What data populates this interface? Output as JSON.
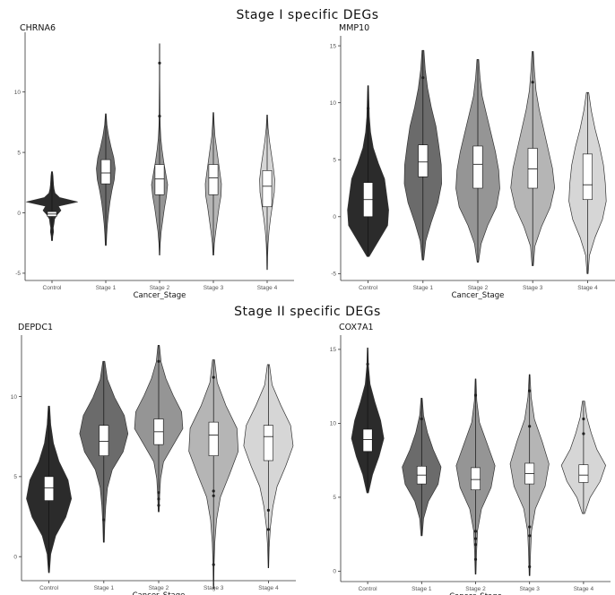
{
  "sections": [
    {
      "title": "Stage I specific DEGs"
    },
    {
      "title": "Stage II specific DEGs"
    }
  ],
  "chart_data": [
    {
      "type": "violin",
      "title": "CHRNA6",
      "xlabel": "Cancer_Stage",
      "ylabel": "",
      "categories": [
        "Control",
        "Stage 1",
        "Stage 2",
        "Stage 3",
        "Stage 4"
      ],
      "yticks": [
        -5,
        0,
        5,
        10
      ],
      "ylim": [
        -5.6,
        14.5
      ],
      "fill_colors": [
        "#2b2b2b",
        "#6b6b6b",
        "#959595",
        "#b5b5b5",
        "#d6d6d6"
      ],
      "grid": false,
      "series": [
        {
          "category": "Control",
          "min": -2.3,
          "max": 3.4,
          "q1": -0.3,
          "median": -0.1,
          "q3": 0.1,
          "half_width": 0.95,
          "shape": [
            0.02,
            0.03,
            0.06,
            0.05,
            0.08,
            0.1,
            0.2,
            0.35,
            0.25,
            1.0,
            0.3,
            0.12,
            0.08,
            0.06,
            0.05,
            0.04,
            0.02
          ]
        },
        {
          "category": "Stage 1",
          "min": -2.7,
          "max": 8.2,
          "q1": 2.4,
          "median": 3.3,
          "q3": 4.4,
          "half_width": 0.35,
          "shape": [
            0.05,
            0.1,
            0.18,
            0.3,
            0.45,
            0.65,
            0.9,
            1.0,
            0.85,
            0.55,
            0.3,
            0.12,
            0.04
          ]
        },
        {
          "category": "Stage 2",
          "min": -3.5,
          "max": 14.0,
          "q1": 1.5,
          "median": 2.8,
          "q3": 4.0,
          "half_width": 0.3,
          "shape": [
            0.03,
            0.08,
            0.2,
            0.4,
            0.6,
            0.85,
            1.0,
            0.75,
            0.5,
            0.3,
            0.15,
            0.08,
            0.05,
            0.04,
            0.03,
            0.02,
            0.02,
            0.015,
            0.01
          ],
          "outliers": [
            12.4,
            8.0
          ]
        },
        {
          "category": "Stage 3",
          "min": -3.5,
          "max": 8.3,
          "q1": 1.5,
          "median": 2.9,
          "q3": 4.0,
          "half_width": 0.3,
          "shape": [
            0.05,
            0.12,
            0.3,
            0.5,
            0.7,
            0.95,
            1.0,
            0.8,
            0.6,
            0.4,
            0.2,
            0.1,
            0.04
          ]
        },
        {
          "category": "Stage 4",
          "min": -4.7,
          "max": 8.1,
          "q1": 0.5,
          "median": 2.2,
          "q3": 3.5,
          "half_width": 0.28,
          "shape": [
            0.03,
            0.06,
            0.12,
            0.25,
            0.45,
            0.7,
            0.95,
            1.0,
            0.8,
            0.55,
            0.3,
            0.12,
            0.04
          ]
        }
      ]
    },
    {
      "type": "violin",
      "title": "MMP10",
      "xlabel": "Cancer_Stage",
      "ylabel": "",
      "categories": [
        "Control",
        "Stage 1",
        "Stage 2",
        "Stage 3",
        "Stage 4"
      ],
      "yticks": [
        -5,
        0,
        5,
        10,
        15
      ],
      "ylim": [
        -5.6,
        15.4
      ],
      "fill_colors": [
        "#2b2b2b",
        "#6b6b6b",
        "#959595",
        "#b5b5b5",
        "#d6d6d6"
      ],
      "grid": false,
      "series": [
        {
          "category": "Control",
          "min": -3.5,
          "max": 11.5,
          "q1": 0.0,
          "median": 1.5,
          "q3": 3.0,
          "half_width": 0.75,
          "shape": [
            0.05,
            0.5,
            0.95,
            1.0,
            0.9,
            0.8,
            0.5,
            0.25,
            0.12,
            0.06,
            0.04,
            0.02
          ],
          "outliers": [
            9.5
          ]
        },
        {
          "category": "Stage 1",
          "min": -3.8,
          "max": 14.6,
          "q1": 3.5,
          "median": 4.8,
          "q3": 6.3,
          "half_width": 0.68,
          "shape": [
            0.04,
            0.15,
            0.45,
            0.8,
            1.0,
            0.98,
            0.85,
            0.7,
            0.45,
            0.25,
            0.12,
            0.05
          ],
          "outliers": [
            12.2
          ]
        },
        {
          "category": "Stage 2",
          "min": -4.0,
          "max": 13.8,
          "q1": 2.5,
          "median": 4.6,
          "q3": 6.2,
          "half_width": 0.8,
          "shape": [
            0.03,
            0.15,
            0.45,
            0.85,
            1.0,
            0.95,
            0.8,
            0.6,
            0.4,
            0.2,
            0.1,
            0.04
          ]
        },
        {
          "category": "Stage 3",
          "min": -4.3,
          "max": 14.5,
          "q1": 2.5,
          "median": 4.2,
          "q3": 6.0,
          "half_width": 0.8,
          "shape": [
            0.03,
            0.1,
            0.4,
            0.8,
            1.0,
            0.9,
            0.7,
            0.5,
            0.3,
            0.15,
            0.08,
            0.03
          ],
          "outliers": [
            11.8
          ]
        },
        {
          "category": "Stage 4",
          "min": -5.0,
          "max": 10.9,
          "q1": 1.5,
          "median": 2.8,
          "q3": 5.5,
          "half_width": 0.68,
          "shape": [
            0.03,
            0.1,
            0.4,
            0.8,
            1.0,
            0.95,
            0.85,
            0.65,
            0.4,
            0.2,
            0.06
          ]
        }
      ]
    },
    {
      "type": "violin",
      "title": "DEPDC1",
      "xlabel": "Cancer_Stage",
      "ylabel": "",
      "categories": [
        "Control",
        "Stage 1",
        "Stage 2",
        "Stage 3",
        "Stage 4"
      ],
      "yticks": [
        0,
        5,
        10
      ],
      "ylim": [
        -1.5,
        13.5
      ],
      "fill_colors": [
        "#2b2b2b",
        "#6b6b6b",
        "#959595",
        "#b5b5b5",
        "#d6d6d6"
      ],
      "grid": false,
      "series": [
        {
          "category": "Control",
          "min": -1.0,
          "max": 9.4,
          "q1": 3.5,
          "median": 4.3,
          "q3": 5.0,
          "half_width": 0.82,
          "shape": [
            0.02,
            0.08,
            0.3,
            0.75,
            1.0,
            0.85,
            0.45,
            0.2,
            0.08,
            0.03
          ],
          "outliers": [
            0.5,
            8.5
          ]
        },
        {
          "category": "Stage 1",
          "min": 0.9,
          "max": 12.2,
          "q1": 6.3,
          "median": 7.2,
          "q3": 8.2,
          "half_width": 0.88,
          "shape": [
            0.02,
            0.04,
            0.08,
            0.15,
            0.35,
            0.8,
            1.0,
            0.85,
            0.45,
            0.15,
            0.04
          ],
          "outliers": [
            2.3
          ]
        },
        {
          "category": "Stage 2",
          "min": 2.8,
          "max": 13.2,
          "q1": 7.0,
          "median": 7.8,
          "q3": 8.6,
          "half_width": 0.88,
          "shape": [
            0.02,
            0.04,
            0.08,
            0.2,
            0.6,
            1.0,
            0.95,
            0.6,
            0.3,
            0.1,
            0.03
          ],
          "outliers": [
            12.2,
            3.2,
            3.6,
            4.0
          ]
        },
        {
          "category": "Stage 3",
          "min": -2.0,
          "max": 12.3,
          "q1": 6.3,
          "median": 7.6,
          "q3": 8.4,
          "half_width": 0.9,
          "shape": [
            0.01,
            0.02,
            0.05,
            0.12,
            0.28,
            0.65,
            1.0,
            0.95,
            0.5,
            0.15,
            0.04
          ],
          "outliers": [
            -0.5,
            3.8,
            4.1,
            11.2
          ]
        },
        {
          "category": "Stage 4",
          "min": -0.7,
          "max": 12.0,
          "q1": 6.0,
          "median": 7.5,
          "q3": 8.2,
          "half_width": 0.9,
          "shape": [
            0.01,
            0.03,
            0.08,
            0.18,
            0.35,
            0.7,
            1.0,
            0.9,
            0.5,
            0.15,
            0.04
          ],
          "outliers": [
            1.7,
            2.9
          ]
        }
      ]
    },
    {
      "type": "violin",
      "title": "COX7A1",
      "xlabel": "Cancer_Stage",
      "ylabel": "",
      "categories": [
        "Control",
        "Stage 1",
        "Stage 2",
        "Stage 3",
        "Stage 4"
      ],
      "yticks": [
        0,
        5,
        10,
        15
      ],
      "ylim": [
        -0.7,
        15.6
      ],
      "fill_colors": [
        "#2b2b2b",
        "#6b6b6b",
        "#959595",
        "#b5b5b5",
        "#d6d6d6"
      ],
      "grid": false,
      "series": [
        {
          "category": "Control",
          "min": 5.3,
          "max": 15.1,
          "q1": 8.1,
          "median": 8.9,
          "q3": 9.6,
          "half_width": 0.6,
          "shape": [
            0.05,
            0.3,
            0.7,
            1.0,
            0.8,
            0.45,
            0.15,
            0.05,
            0.02
          ],
          "outliers": [
            14.0
          ]
        },
        {
          "category": "Stage 1",
          "min": 2.4,
          "max": 11.7,
          "q1": 5.9,
          "median": 6.5,
          "q3": 7.1,
          "half_width": 0.72,
          "shape": [
            0.03,
            0.1,
            0.35,
            0.85,
            1.0,
            0.6,
            0.3,
            0.1,
            0.03
          ],
          "outliers": [
            10.3
          ]
        },
        {
          "category": "Stage 2",
          "min": -0.2,
          "max": 13.0,
          "q1": 5.5,
          "median": 6.2,
          "q3": 7.0,
          "half_width": 0.72,
          "shape": [
            0.02,
            0.05,
            0.1,
            0.3,
            0.8,
            1.0,
            0.6,
            0.2,
            0.06,
            0.02
          ],
          "outliers": [
            0.8,
            1.8,
            2.2,
            2.7,
            11.9
          ]
        },
        {
          "category": "Stage 3",
          "min": -0.3,
          "max": 13.3,
          "q1": 5.9,
          "median": 6.6,
          "q3": 7.3,
          "half_width": 0.72,
          "shape": [
            0.02,
            0.05,
            0.1,
            0.3,
            0.8,
            1.0,
            0.65,
            0.25,
            0.08,
            0.02
          ],
          "outliers": [
            0.3,
            2.4,
            3.0,
            9.8,
            12.2
          ]
        },
        {
          "category": "Stage 4",
          "min": 3.9,
          "max": 11.5,
          "q1": 6.0,
          "median": 6.5,
          "q3": 7.2,
          "half_width": 0.82,
          "shape": [
            0.05,
            0.3,
            0.75,
            1.0,
            0.6,
            0.35,
            0.15,
            0.05
          ],
          "outliers": [
            9.3,
            10.3
          ]
        }
      ]
    }
  ]
}
